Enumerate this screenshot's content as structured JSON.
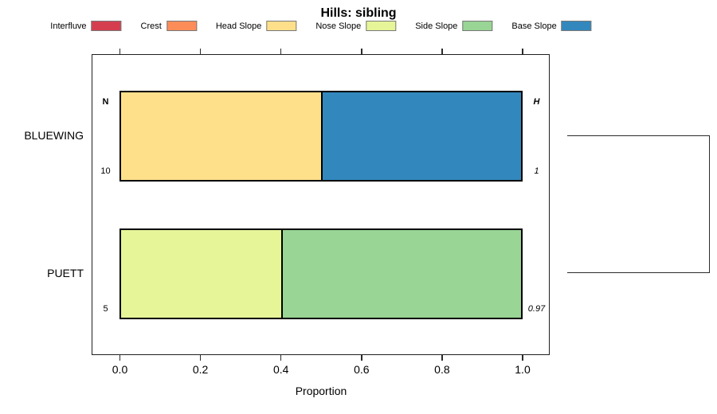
{
  "title": "Hills: sibling",
  "legend": {
    "items": [
      {
        "label": "Interfluve",
        "color": "#D53E4F"
      },
      {
        "label": "Crest",
        "color": "#FC8D59"
      },
      {
        "label": "Head Slope",
        "color": "#FEE08B"
      },
      {
        "label": "Nose Slope",
        "color": "#E6F598"
      },
      {
        "label": "Side Slope",
        "color": "#99D594"
      },
      {
        "label": "Base Slope",
        "color": "#3288BD"
      }
    ]
  },
  "chart_data": {
    "type": "bar",
    "orientation": "horizontal",
    "stacked": true,
    "title": "Hills: sibling",
    "xlabel": "Proportion",
    "xlim": [
      0,
      1
    ],
    "xticks": [
      {
        "value": 0.0,
        "label": "0.0"
      },
      {
        "value": 0.2,
        "label": "0.2"
      },
      {
        "value": 0.4,
        "label": "0.4"
      },
      {
        "value": 0.6,
        "label": "0.6"
      },
      {
        "value": 0.8,
        "label": "0.8"
      },
      {
        "value": 1.0,
        "label": "1.0"
      }
    ],
    "categories": [
      "BLUEWING",
      "PUETT"
    ],
    "bars": [
      {
        "category": "BLUEWING",
        "segments": [
          {
            "name": "Head Slope",
            "value": 0.5
          },
          {
            "name": "Base Slope",
            "value": 0.5
          }
        ],
        "left_header": "N",
        "left_value": "10",
        "right_header": "H",
        "right_value": "1"
      },
      {
        "category": "PUETT",
        "segments": [
          {
            "name": "Nose Slope",
            "value": 0.4
          },
          {
            "name": "Side Slope",
            "value": 0.6
          }
        ],
        "left_header": "",
        "left_value": "5",
        "right_header": "",
        "right_value": "0.97"
      }
    ],
    "legend_entries": [
      "Interfluve",
      "Crest",
      "Head Slope",
      "Nose Slope",
      "Side Slope",
      "Base Slope"
    ],
    "legend_position": "top",
    "grid": false,
    "right_margin_annotation": "dendrogram bracket joining BLUEWING and PUETT"
  }
}
